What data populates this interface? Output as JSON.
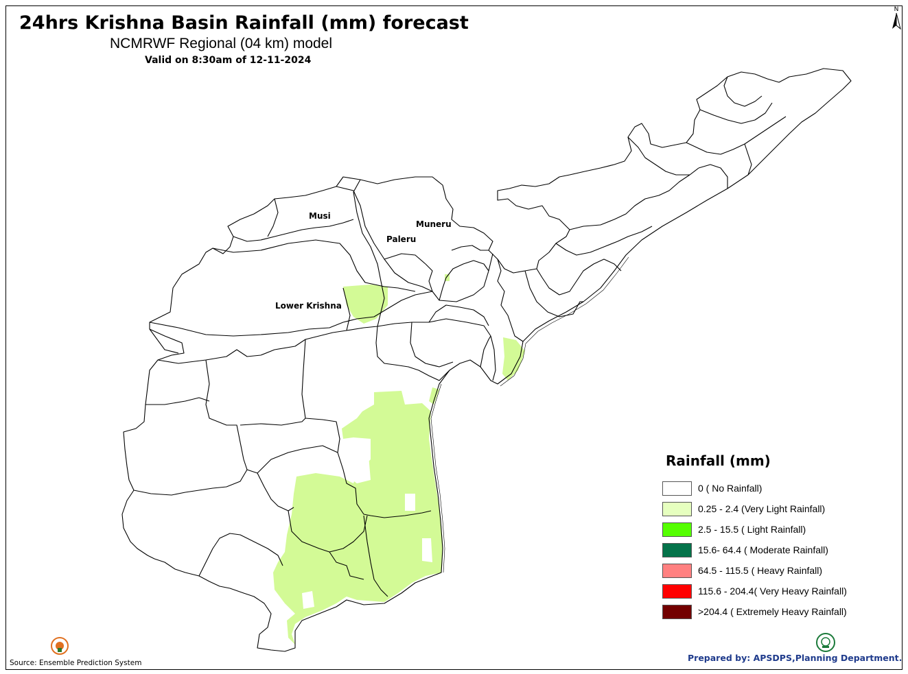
{
  "header": {
    "title": "24hrs Krishna Basin Rainfall (mm) forecast",
    "subtitle": "NCMRWF Regional (04 km) model",
    "valid": "Valid on 8:30am of 12-11-2024"
  },
  "north_arrow": {
    "label": "N",
    "icon": "north-arrow-icon"
  },
  "basins": {
    "musi": "Musi",
    "muneru": "Muneru",
    "paleru": "Paleru",
    "lower_krishna": "Lower Krishna"
  },
  "legend": {
    "title": "Rainfall (mm)",
    "items": [
      {
        "label": "0 ( No Rainfall)",
        "color": "#ffffff"
      },
      {
        "label": "0.25 - 2.4 (Very Light Rainfall)",
        "color": "#e6ffbf"
      },
      {
        "label": "2.5 - 15.5 ( Light Rainfall)",
        "color": "#55ff00"
      },
      {
        "label": "15.6- 64.4 ( Moderate Rainfall)",
        "color": "#04734a"
      },
      {
        "label": "64.5 - 115.5 ( Heavy Rainfall)",
        "color": "#ff8080"
      },
      {
        "label": "115.6 - 204.4( Very Heavy Rainfall)",
        "color": "#ff0000"
      },
      {
        "label": ">204.4 ( Extremely Heavy Rainfall)",
        "color": "#730000"
      }
    ]
  },
  "rain_fill_color": "#d3fa96",
  "footer": {
    "source": "Source: Ensemble Prediction System",
    "prepared": "Prepared by: APSDPS,Planning Department."
  }
}
